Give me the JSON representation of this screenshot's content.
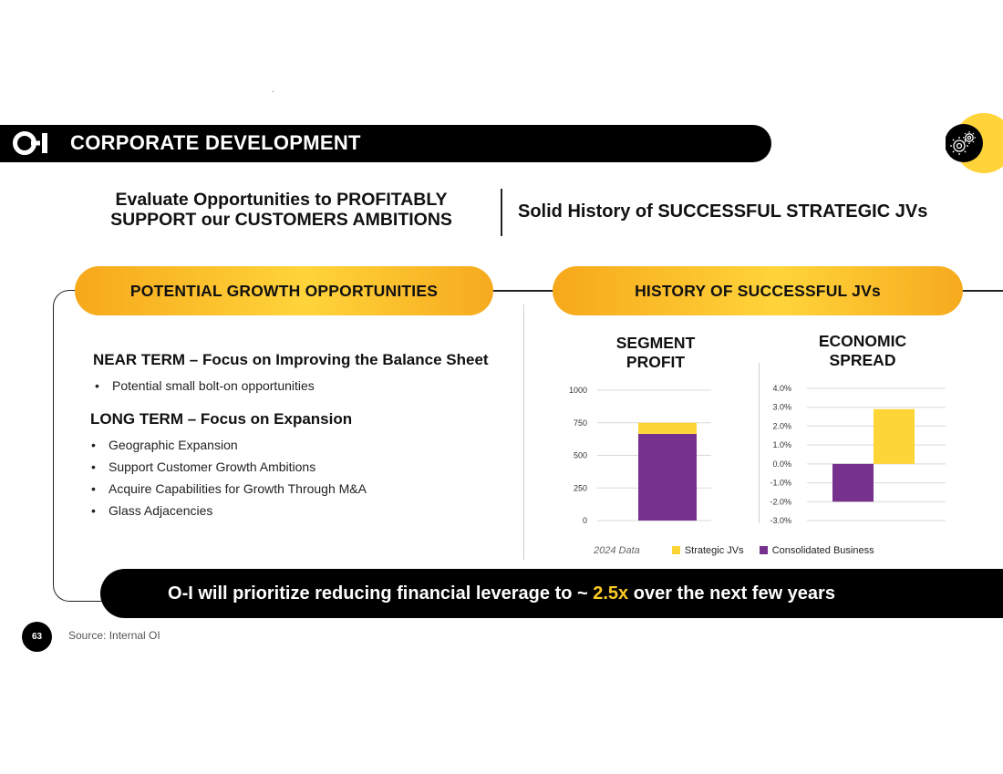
{
  "header": {
    "title": "CORPORATE DEVELOPMENT",
    "logo_icon": "o-i-logo",
    "corner_icon": "gears-icon",
    "accent_color": "#ffcc26"
  },
  "headline": {
    "left_line1": "Evaluate Opportunities to PROFITABLY",
    "left_line2": "SUPPORT our CUSTOMERS AMBITIONS",
    "right": "Solid History of SUCCESSFUL STRATEGIC JVs"
  },
  "left_panel": {
    "pill_label": "POTENTIAL GROWTH OPPORTUNITIES",
    "near_term": {
      "heading": "NEAR TERM – Focus on Improving the Balance Sheet",
      "bullets": [
        "Potential small bolt-on opportunities"
      ]
    },
    "long_term": {
      "heading": "LONG TERM – Focus on Expansion",
      "bullets": [
        "Geographic Expansion",
        "Support Customer Growth Ambitions",
        "Acquire Capabilities for Growth Through M&A",
        "Glass Adjacencies"
      ]
    }
  },
  "right_panel": {
    "pill_label": "HISTORY OF SUCCESSFUL JVs",
    "chart1_title_line1": "SEGMENT",
    "chart1_title_line2": "PROFIT",
    "chart2_title_line1": "ECONOMIC",
    "chart2_title_line2": "SPREAD",
    "legend_note": "2024 Data",
    "legend_strategic": "Strategic JVs",
    "legend_consolidated": "Consolidated Business"
  },
  "chart_data": [
    {
      "type": "bar",
      "stacked": true,
      "title": "SEGMENT PROFIT",
      "categories": [
        ""
      ],
      "series": [
        {
          "name": "Consolidated Business",
          "values": [
            665
          ],
          "color": "#76308d"
        },
        {
          "name": "Strategic JVs",
          "values": [
            85
          ],
          "color": "#fed536"
        }
      ],
      "ylim": [
        0,
        1000
      ],
      "yticks": [
        0,
        250,
        500,
        750,
        1000
      ],
      "ytick_labels": [
        "0",
        "250",
        "500",
        "750",
        "1000"
      ],
      "grid": true
    },
    {
      "type": "bar",
      "title": "ECONOMIC SPREAD",
      "categories": [
        "Consolidated Business",
        "Strategic JVs"
      ],
      "values": [
        -2.0,
        2.9
      ],
      "colors": [
        "#76308d",
        "#fed536"
      ],
      "ylim": [
        -3.0,
        4.0
      ],
      "yticks": [
        -3.0,
        -2.0,
        -1.0,
        0.0,
        1.0,
        2.0,
        3.0,
        4.0
      ],
      "ytick_labels": [
        "-3.0%",
        "-2.0%",
        "-1.0%",
        "0.0%",
        "1.0%",
        "2.0%",
        "3.0%",
        "4.0%"
      ],
      "grid": true
    }
  ],
  "banner": {
    "text_before": "O-I will prioritize reducing financial leverage to ~ ",
    "highlight": "2.5x",
    "text_after": " over the next few years"
  },
  "footer": {
    "page_number": "63",
    "source": "Source: Internal OI"
  }
}
